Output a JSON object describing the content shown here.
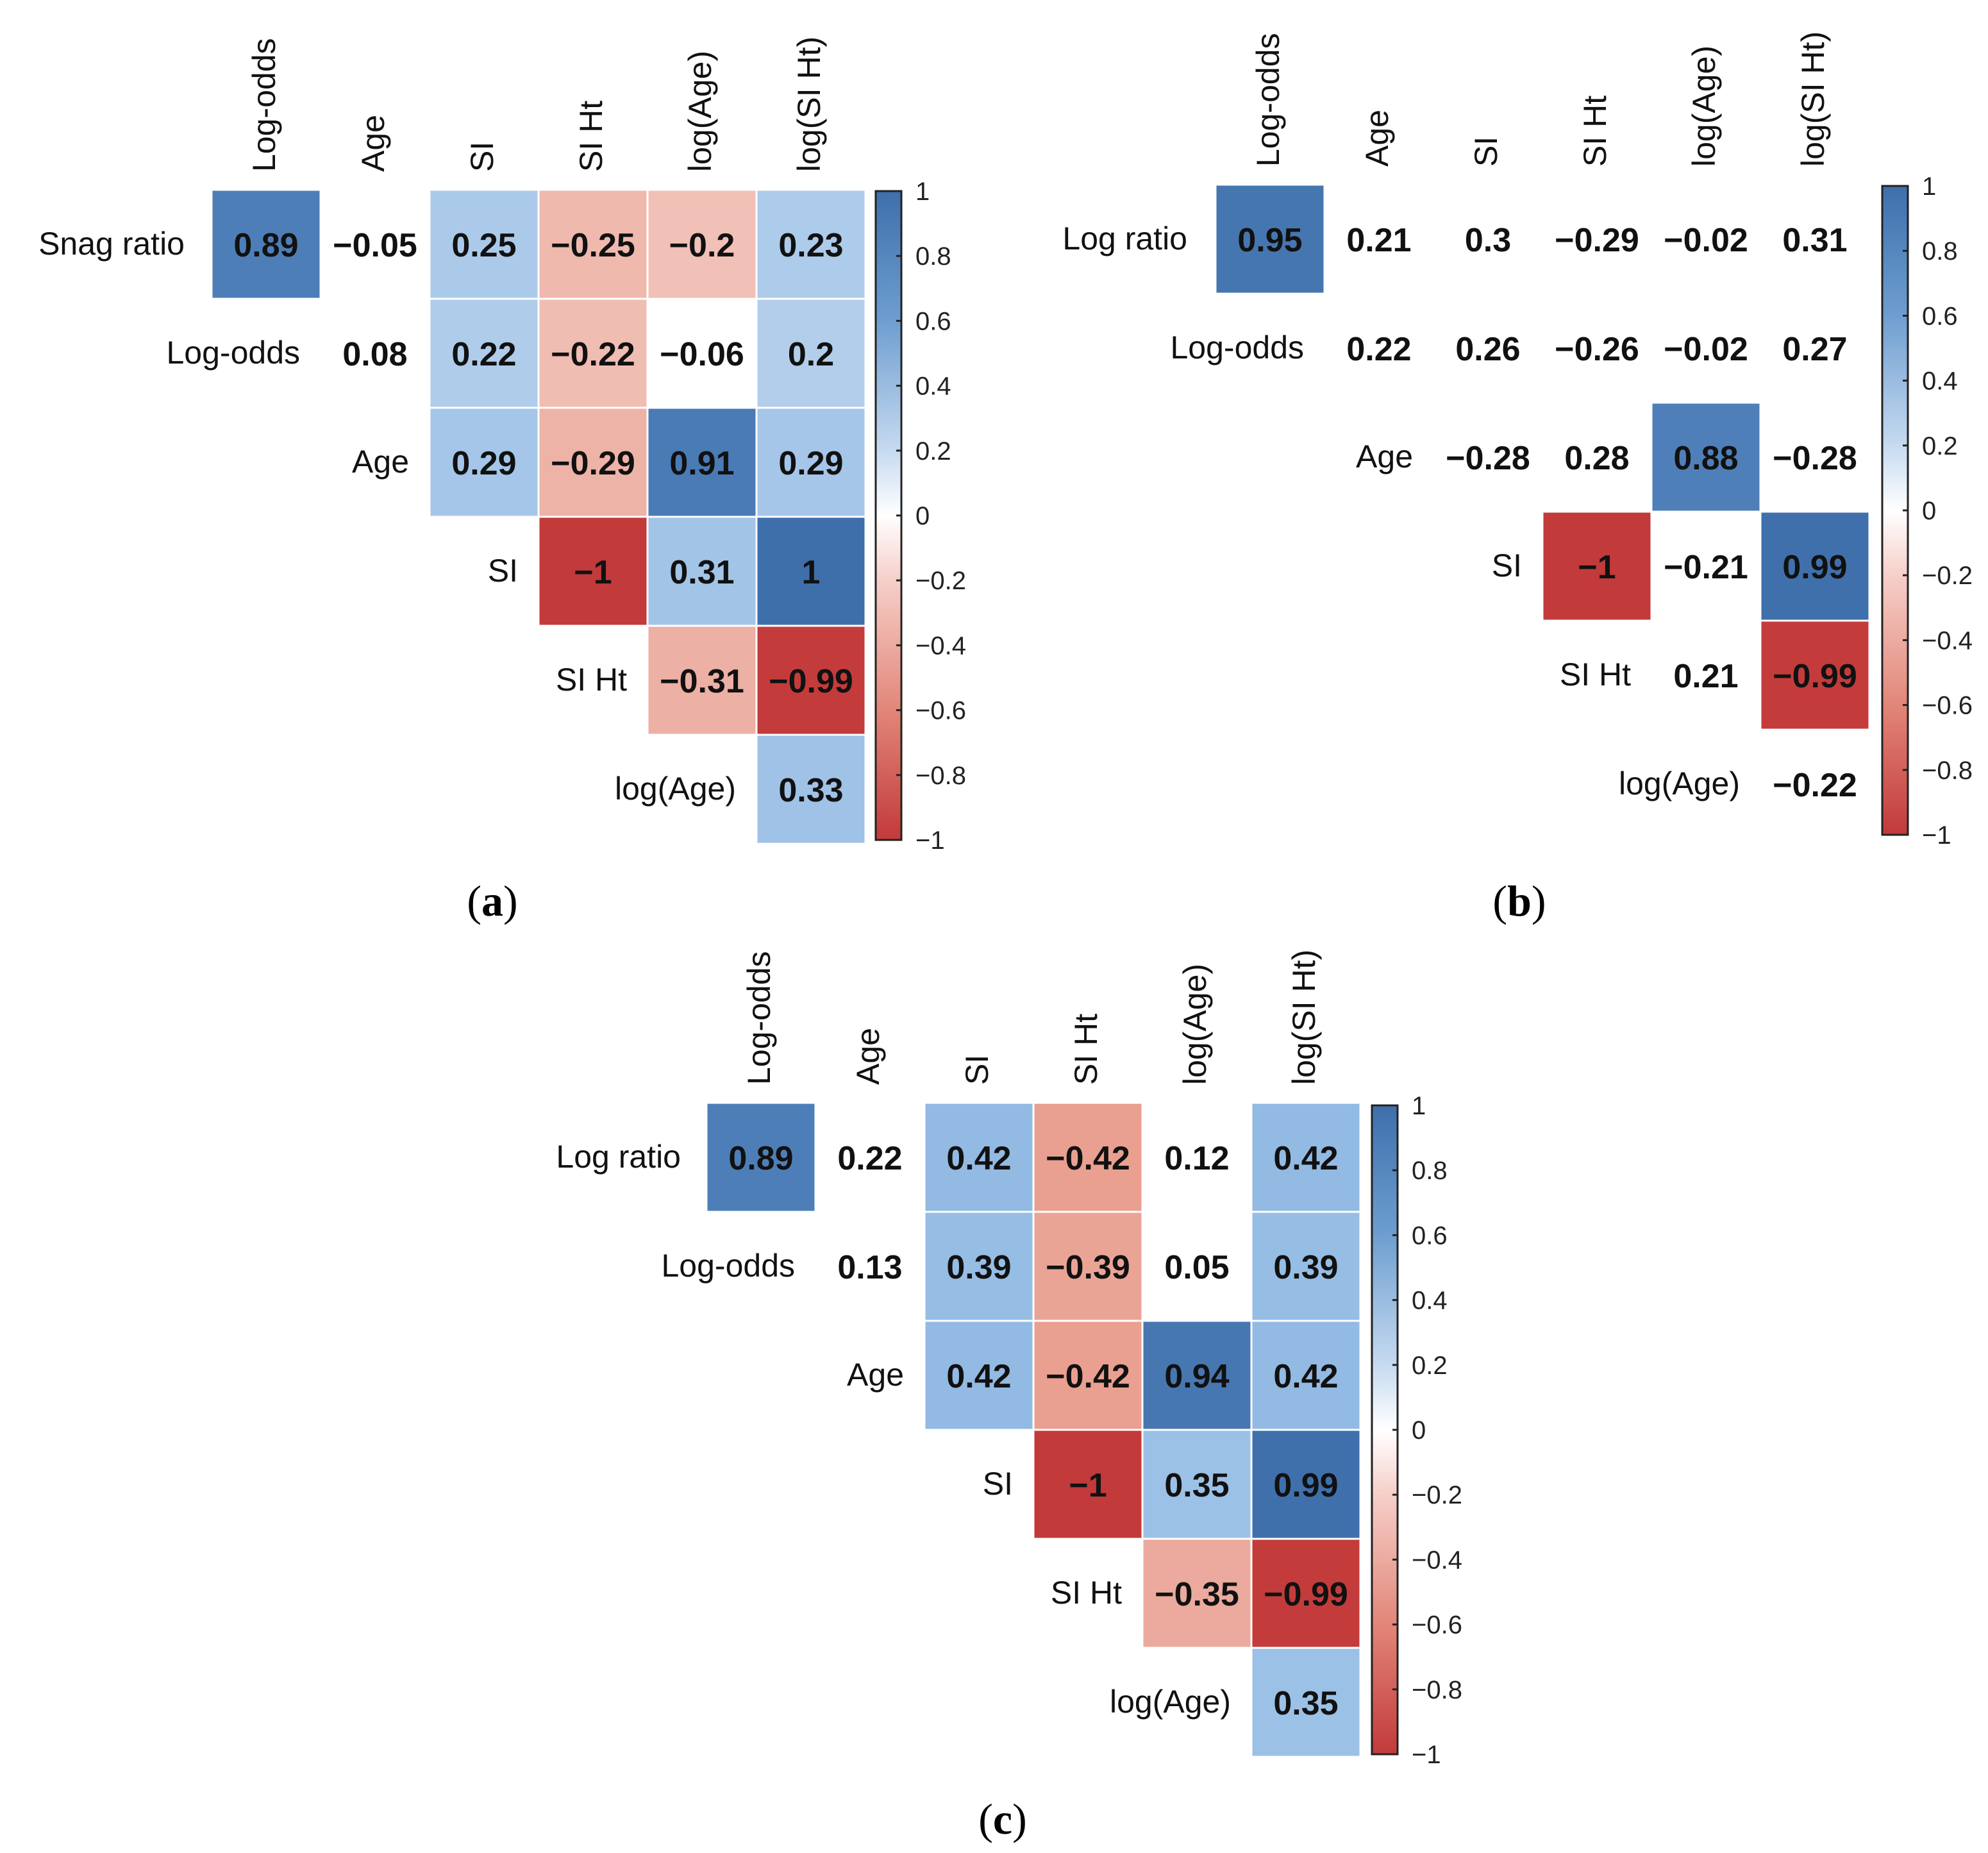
{
  "chart_data": [
    {
      "type": "heatmap",
      "panel_label": "(a)",
      "row_labels": [
        "Snag ratio",
        "Log-odds",
        "Age",
        "SI",
        "SI Ht",
        "log(Age)"
      ],
      "col_labels": [
        "Log-odds",
        "Age",
        "SI",
        "SI Ht",
        "log(Age)",
        "log(SI Ht)"
      ],
      "values": [
        [
          0.89,
          -0.05,
          0.25,
          -0.25,
          -0.2,
          0.23
        ],
        [
          null,
          0.08,
          0.22,
          -0.22,
          -0.06,
          0.2
        ],
        [
          null,
          null,
          0.29,
          -0.29,
          0.91,
          0.29
        ],
        [
          null,
          null,
          null,
          -1,
          0.31,
          1
        ],
        [
          null,
          null,
          null,
          null,
          -0.31,
          -0.99
        ],
        [
          null,
          null,
          null,
          null,
          null,
          0.33
        ]
      ],
      "display": [
        [
          "0.89",
          "−0.05",
          "0.25",
          "−0.25",
          "−0.2",
          "0.23"
        ],
        [
          null,
          "0.08",
          "0.22",
          "−0.22",
          "−0.06",
          "0.2"
        ],
        [
          null,
          null,
          "0.29",
          "−0.29",
          "0.91",
          "0.29"
        ],
        [
          null,
          null,
          null,
          "−1",
          "0.31",
          "1"
        ],
        [
          null,
          null,
          null,
          null,
          "−0.31",
          "−0.99"
        ],
        [
          null,
          null,
          null,
          null,
          null,
          "0.33"
        ]
      ],
      "shaded": [
        [
          true,
          false,
          true,
          true,
          true,
          true
        ],
        [
          false,
          false,
          true,
          true,
          false,
          true
        ],
        [
          false,
          false,
          true,
          true,
          true,
          true
        ],
        [
          false,
          false,
          false,
          true,
          true,
          true
        ],
        [
          false,
          false,
          false,
          false,
          true,
          true
        ],
        [
          false,
          false,
          false,
          false,
          false,
          true
        ]
      ],
      "colorbar": {
        "range": [
          -1,
          1
        ],
        "ticks": [
          1,
          0.8,
          0.6,
          0.4,
          0.2,
          0,
          -0.2,
          -0.4,
          -0.6,
          -0.8,
          -1
        ],
        "tick_labels": [
          "1",
          "0.8",
          "0.6",
          "0.4",
          "0.2",
          "0",
          "−0.2",
          "−0.4",
          "−0.6",
          "−0.8",
          "−1"
        ]
      }
    },
    {
      "type": "heatmap",
      "panel_label": "(b)",
      "row_labels": [
        "Log ratio",
        "Log-odds",
        "Age",
        "SI",
        "SI Ht",
        "log(Age)"
      ],
      "col_labels": [
        "Log-odds",
        "Age",
        "SI",
        "SI Ht",
        "log(Age)",
        "log(SI Ht)"
      ],
      "values": [
        [
          0.95,
          0.21,
          0.3,
          -0.29,
          -0.02,
          0.31
        ],
        [
          null,
          0.22,
          0.26,
          -0.26,
          -0.02,
          0.27
        ],
        [
          null,
          null,
          -0.28,
          0.28,
          0.88,
          -0.28
        ],
        [
          null,
          null,
          null,
          -1,
          -0.21,
          0.99
        ],
        [
          null,
          null,
          null,
          null,
          0.21,
          -0.99
        ],
        [
          null,
          null,
          null,
          null,
          null,
          -0.22
        ]
      ],
      "display": [
        [
          "0.95",
          "0.21",
          "0.3",
          "−0.29",
          "−0.02",
          "0.31"
        ],
        [
          null,
          "0.22",
          "0.26",
          "−0.26",
          "−0.02",
          "0.27"
        ],
        [
          null,
          null,
          "−0.28",
          "0.28",
          "0.88",
          "−0.28"
        ],
        [
          null,
          null,
          null,
          "−1",
          "−0.21",
          "0.99"
        ],
        [
          null,
          null,
          null,
          null,
          "0.21",
          "−0.99"
        ],
        [
          null,
          null,
          null,
          null,
          null,
          "−0.22"
        ]
      ],
      "shaded": [
        [
          true,
          false,
          false,
          false,
          false,
          false
        ],
        [
          false,
          false,
          false,
          false,
          false,
          false
        ],
        [
          false,
          false,
          false,
          false,
          true,
          false
        ],
        [
          false,
          false,
          false,
          true,
          false,
          true
        ],
        [
          false,
          false,
          false,
          false,
          false,
          true
        ],
        [
          false,
          false,
          false,
          false,
          false,
          false
        ]
      ],
      "colorbar": {
        "range": [
          -1,
          1
        ],
        "ticks": [
          1,
          0.8,
          0.6,
          0.4,
          0.2,
          0,
          -0.2,
          -0.4,
          -0.6,
          -0.8,
          -1
        ],
        "tick_labels": [
          "1",
          "0.8",
          "0.6",
          "0.4",
          "0.2",
          "0",
          "−0.2",
          "−0.4",
          "−0.6",
          "−0.8",
          "−1"
        ]
      }
    },
    {
      "type": "heatmap",
      "panel_label": "(c)",
      "row_labels": [
        "Log ratio",
        "Log-odds",
        "Age",
        "SI",
        "SI Ht",
        "log(Age)"
      ],
      "col_labels": [
        "Log-odds",
        "Age",
        "SI",
        "SI Ht",
        "log(Age)",
        "log(SI Ht)"
      ],
      "values": [
        [
          0.89,
          0.22,
          0.42,
          -0.42,
          0.12,
          0.42
        ],
        [
          null,
          0.13,
          0.39,
          -0.39,
          0.05,
          0.39
        ],
        [
          null,
          null,
          0.42,
          -0.42,
          0.94,
          0.42
        ],
        [
          null,
          null,
          null,
          -1,
          0.35,
          0.99
        ],
        [
          null,
          null,
          null,
          null,
          -0.35,
          -0.99
        ],
        [
          null,
          null,
          null,
          null,
          null,
          0.35
        ]
      ],
      "display": [
        [
          "0.89",
          "0.22",
          "0.42",
          "−0.42",
          "0.12",
          "0.42"
        ],
        [
          null,
          "0.13",
          "0.39",
          "−0.39",
          "0.05",
          "0.39"
        ],
        [
          null,
          null,
          "0.42",
          "−0.42",
          "0.94",
          "0.42"
        ],
        [
          null,
          null,
          null,
          "−1",
          "0.35",
          "0.99"
        ],
        [
          null,
          null,
          null,
          null,
          "−0.35",
          "−0.99"
        ],
        [
          null,
          null,
          null,
          null,
          null,
          "0.35"
        ]
      ],
      "shaded": [
        [
          true,
          false,
          true,
          true,
          false,
          true
        ],
        [
          false,
          false,
          true,
          true,
          false,
          true
        ],
        [
          false,
          false,
          true,
          true,
          true,
          true
        ],
        [
          false,
          false,
          false,
          true,
          true,
          true
        ],
        [
          false,
          false,
          false,
          false,
          true,
          true
        ],
        [
          false,
          false,
          false,
          false,
          false,
          true
        ]
      ],
      "colorbar": {
        "range": [
          -1,
          1
        ],
        "ticks": [
          1,
          0.8,
          0.6,
          0.4,
          0.2,
          0,
          -0.2,
          -0.4,
          -0.6,
          -0.8,
          -1
        ],
        "tick_labels": [
          "1",
          "0.8",
          "0.6",
          "0.4",
          "0.2",
          "0",
          "−0.2",
          "−0.4",
          "−0.6",
          "−0.8",
          "−1"
        ]
      }
    }
  ],
  "colors": {
    "positive": "#3E6FAB",
    "neutral": "#FFFFFF",
    "negative": "#C23A3A",
    "text": "#111111",
    "background": "#FFFFFF"
  }
}
